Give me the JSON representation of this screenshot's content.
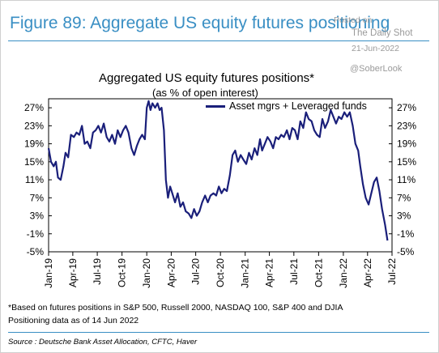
{
  "figure_title": "Figure 89: Aggregate US equity futures positioning",
  "watermark": {
    "posted": "Posted on",
    "site": "The Daily Shot",
    "date": "21-Jun-2022",
    "handle": "@SoberLook"
  },
  "footnote_1": "*Based on futures positions in S&P 500, Russell 2000, NASDAQ 100, S&P 400 and DJIA",
  "footnote_2": "Positioning data as of 14 Jun 2022",
  "source": "Source : Deutsche Bank Asset Allocation, CFTC, Haver",
  "colors": {
    "title": "#3a8fc4",
    "series": "#1a1f7a",
    "rule": "#3a8fc4"
  },
  "chart_data": {
    "type": "line",
    "title": "Aggregated US equity futures positions*",
    "subtitle": "(as % of open interest)",
    "legend_position": "top-right",
    "grid": false,
    "ylim": [
      -5,
      29
    ],
    "y_ticks": [
      "27%",
      "23%",
      "19%",
      "15%",
      "11%",
      "7%",
      "3%",
      "-1%",
      "-5%"
    ],
    "x_ticks": [
      "Jan-19",
      "Apr-19",
      "Jul-19",
      "Oct-19",
      "Jan-20",
      "Apr-20",
      "Jul-20",
      "Oct-20",
      "Jan-21",
      "Apr-21",
      "Jul-21",
      "Oct-21",
      "Jan-22",
      "Apr-22",
      "Jul-22"
    ],
    "series": [
      {
        "name": "Asset mgrs + Leveraged funds",
        "points": [
          [
            "2019-01-01",
            18.0
          ],
          [
            "2019-01-10",
            15.0
          ],
          [
            "2019-01-20",
            14.0
          ],
          [
            "2019-01-28",
            15.0
          ],
          [
            "2019-02-05",
            11.5
          ],
          [
            "2019-02-15",
            11.0
          ],
          [
            "2019-02-25",
            14.0
          ],
          [
            "2019-03-05",
            17.0
          ],
          [
            "2019-03-15",
            16.0
          ],
          [
            "2019-03-25",
            21.0
          ],
          [
            "2019-04-05",
            20.5
          ],
          [
            "2019-04-15",
            21.5
          ],
          [
            "2019-04-25",
            21.0
          ],
          [
            "2019-05-05",
            23.0
          ],
          [
            "2019-05-15",
            19.0
          ],
          [
            "2019-05-25",
            19.5
          ],
          [
            "2019-06-05",
            18.0
          ],
          [
            "2019-06-15",
            21.5
          ],
          [
            "2019-06-25",
            22.0
          ],
          [
            "2019-07-05",
            23.0
          ],
          [
            "2019-07-15",
            21.5
          ],
          [
            "2019-07-25",
            23.5
          ],
          [
            "2019-08-05",
            20.5
          ],
          [
            "2019-08-15",
            19.5
          ],
          [
            "2019-08-25",
            21.0
          ],
          [
            "2019-09-05",
            19.0
          ],
          [
            "2019-09-15",
            22.0
          ],
          [
            "2019-09-25",
            20.5
          ],
          [
            "2019-10-05",
            22.0
          ],
          [
            "2019-10-15",
            23.0
          ],
          [
            "2019-10-25",
            21.5
          ],
          [
            "2019-11-05",
            18.0
          ],
          [
            "2019-11-15",
            16.5
          ],
          [
            "2019-11-25",
            18.5
          ],
          [
            "2019-12-05",
            20.0
          ],
          [
            "2019-12-15",
            21.0
          ],
          [
            "2019-12-25",
            20.0
          ],
          [
            "2020-01-01",
            27.0
          ],
          [
            "2020-01-08",
            28.5
          ],
          [
            "2020-01-15",
            26.5
          ],
          [
            "2020-01-22",
            28.0
          ],
          [
            "2020-02-01",
            27.0
          ],
          [
            "2020-02-10",
            28.0
          ],
          [
            "2020-02-18",
            26.5
          ],
          [
            "2020-02-25",
            27.0
          ],
          [
            "2020-03-05",
            22.0
          ],
          [
            "2020-03-12",
            11.0
          ],
          [
            "2020-03-20",
            7.0
          ],
          [
            "2020-03-28",
            9.5
          ],
          [
            "2020-04-05",
            8.0
          ],
          [
            "2020-04-15",
            6.0
          ],
          [
            "2020-04-25",
            8.0
          ],
          [
            "2020-05-05",
            5.0
          ],
          [
            "2020-05-15",
            6.0
          ],
          [
            "2020-05-25",
            4.0
          ],
          [
            "2020-06-05",
            3.5
          ],
          [
            "2020-06-15",
            2.5
          ],
          [
            "2020-06-25",
            4.5
          ],
          [
            "2020-07-05",
            3.0
          ],
          [
            "2020-07-15",
            4.0
          ],
          [
            "2020-07-25",
            6.0
          ],
          [
            "2020-08-05",
            7.5
          ],
          [
            "2020-08-15",
            6.0
          ],
          [
            "2020-08-25",
            7.5
          ],
          [
            "2020-09-05",
            8.0
          ],
          [
            "2020-09-15",
            7.5
          ],
          [
            "2020-09-25",
            9.5
          ],
          [
            "2020-10-05",
            8.0
          ],
          [
            "2020-10-15",
            9.0
          ],
          [
            "2020-10-25",
            8.5
          ],
          [
            "2020-11-05",
            12.0
          ],
          [
            "2020-11-15",
            16.5
          ],
          [
            "2020-11-25",
            17.5
          ],
          [
            "2020-12-05",
            15.0
          ],
          [
            "2020-12-15",
            16.5
          ],
          [
            "2020-12-25",
            15.5
          ],
          [
            "2021-01-05",
            14.5
          ],
          [
            "2021-01-15",
            17.0
          ],
          [
            "2021-01-25",
            15.5
          ],
          [
            "2021-02-05",
            18.0
          ],
          [
            "2021-02-15",
            16.5
          ],
          [
            "2021-02-25",
            20.0
          ],
          [
            "2021-03-05",
            17.5
          ],
          [
            "2021-03-15",
            19.0
          ],
          [
            "2021-03-25",
            20.5
          ],
          [
            "2021-04-05",
            19.5
          ],
          [
            "2021-04-15",
            18.0
          ],
          [
            "2021-04-25",
            20.5
          ],
          [
            "2021-05-05",
            20.0
          ],
          [
            "2021-05-15",
            21.0
          ],
          [
            "2021-05-25",
            20.5
          ],
          [
            "2021-06-05",
            22.0
          ],
          [
            "2021-06-15",
            20.0
          ],
          [
            "2021-06-25",
            22.5
          ],
          [
            "2021-07-05",
            22.0
          ],
          [
            "2021-07-15",
            20.0
          ],
          [
            "2021-07-25",
            24.0
          ],
          [
            "2021-08-05",
            22.5
          ],
          [
            "2021-08-15",
            26.0
          ],
          [
            "2021-08-25",
            24.5
          ],
          [
            "2021-09-05",
            24.0
          ],
          [
            "2021-09-15",
            22.0
          ],
          [
            "2021-09-25",
            21.0
          ],
          [
            "2021-10-05",
            20.5
          ],
          [
            "2021-10-15",
            24.5
          ],
          [
            "2021-10-25",
            22.5
          ],
          [
            "2021-11-05",
            24.0
          ],
          [
            "2021-11-15",
            26.5
          ],
          [
            "2021-11-25",
            25.0
          ],
          [
            "2021-12-05",
            23.5
          ],
          [
            "2021-12-15",
            25.0
          ],
          [
            "2021-12-25",
            24.5
          ],
          [
            "2022-01-05",
            26.0
          ],
          [
            "2022-01-15",
            25.0
          ],
          [
            "2022-01-25",
            26.0
          ],
          [
            "2022-02-05",
            23.0
          ],
          [
            "2022-02-15",
            19.0
          ],
          [
            "2022-02-25",
            17.5
          ],
          [
            "2022-03-05",
            14.0
          ],
          [
            "2022-03-15",
            10.0
          ],
          [
            "2022-03-25",
            7.0
          ],
          [
            "2022-04-05",
            5.5
          ],
          [
            "2022-04-15",
            8.0
          ],
          [
            "2022-04-25",
            10.5
          ],
          [
            "2022-05-05",
            11.5
          ],
          [
            "2022-05-15",
            8.5
          ],
          [
            "2022-05-25",
            4.5
          ],
          [
            "2022-06-05",
            1.0
          ],
          [
            "2022-06-14",
            -2.5
          ]
        ]
      }
    ]
  }
}
